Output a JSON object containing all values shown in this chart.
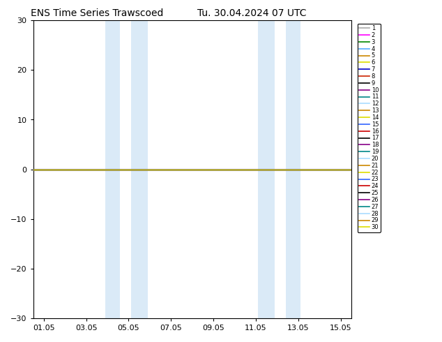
{
  "title_left": "ENS Time Series Trawscoed",
  "title_right": "Tu. 30.04.2024 07 UTC",
  "ylim": [
    -30,
    30
  ],
  "yticks": [
    -30,
    -20,
    -10,
    0,
    10,
    20,
    30
  ],
  "xlabel_dates": [
    "01.05",
    "03.05",
    "05.05",
    "07.05",
    "09.05",
    "11.05",
    "13.05",
    "15.05"
  ],
  "x_tick_positions": [
    1,
    3,
    5,
    7,
    9,
    11,
    13,
    15
  ],
  "xlim": [
    0.5,
    15.5
  ],
  "shaded_regions": [
    [
      3.9,
      4.6
    ],
    [
      5.1,
      5.9
    ],
    [
      11.1,
      11.9
    ],
    [
      12.4,
      13.1
    ]
  ],
  "shaded_color": "#daeaf7",
  "zero_line_color": "#dddd00",
  "zero_line_y": 0,
  "background_color": "#ffffff",
  "legend_entries": [
    {
      "label": "1",
      "color": "#aaaaaa"
    },
    {
      "label": "2",
      "color": "#ff00ff"
    },
    {
      "label": "3",
      "color": "#008800"
    },
    {
      "label": "4",
      "color": "#55aaff"
    },
    {
      "label": "5",
      "color": "#cc8800"
    },
    {
      "label": "6",
      "color": "#dddd00"
    },
    {
      "label": "7",
      "color": "#0000cc"
    },
    {
      "label": "8",
      "color": "#cc2200"
    },
    {
      "label": "9",
      "color": "#000000"
    },
    {
      "label": "10",
      "color": "#880088"
    },
    {
      "label": "11",
      "color": "#008888"
    },
    {
      "label": "12",
      "color": "#aaddff"
    },
    {
      "label": "13",
      "color": "#cc8800"
    },
    {
      "label": "14",
      "color": "#dddd00"
    },
    {
      "label": "15",
      "color": "#3366ff"
    },
    {
      "label": "16",
      "color": "#cc0000"
    },
    {
      "label": "17",
      "color": "#000000"
    },
    {
      "label": "18",
      "color": "#880088"
    },
    {
      "label": "19",
      "color": "#008888"
    },
    {
      "label": "20",
      "color": "#aaddff"
    },
    {
      "label": "21",
      "color": "#cc8800"
    },
    {
      "label": "22",
      "color": "#dddd00"
    },
    {
      "label": "23",
      "color": "#3366ff"
    },
    {
      "label": "24",
      "color": "#cc0000"
    },
    {
      "label": "25",
      "color": "#000000"
    },
    {
      "label": "26",
      "color": "#880088"
    },
    {
      "label": "27",
      "color": "#008888"
    },
    {
      "label": "28",
      "color": "#aaddff"
    },
    {
      "label": "29",
      "color": "#cc8800"
    },
    {
      "label": "30",
      "color": "#dddd00"
    }
  ],
  "title_fontsize": 10,
  "tick_fontsize": 8,
  "legend_fontsize": 6,
  "fig_width": 6.34,
  "fig_height": 4.9,
  "dpi": 100
}
